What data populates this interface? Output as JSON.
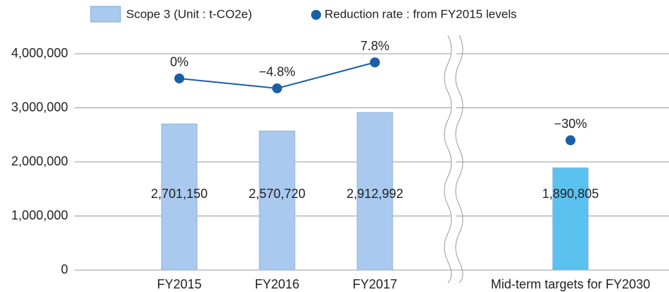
{
  "chart_data": {
    "type": "bar_line",
    "categories": [
      "FY2015",
      "FY2016",
      "FY2017",
      "Mid-term targets for FY2030"
    ],
    "series": [
      {
        "name": "Scope 3 (Unit : t-CO2e)",
        "type": "bar",
        "colors": [
          "#a9c9ee",
          "#a9c9ee",
          "#a9c9ee",
          "#5bc1ef"
        ],
        "values": [
          2701150,
          2570720,
          2912992,
          1890805
        ],
        "value_labels": [
          "2,701,150",
          "2,570,720",
          "2,912,992",
          "1,890,805"
        ]
      },
      {
        "name": "Reduction rate : from FY2015 levels",
        "type": "line",
        "axis": "y2",
        "color": "#1a5ea8",
        "values": [
          0,
          -4.8,
          7.8,
          -30
        ],
        "value_labels": [
          "0%",
          "−4.8%",
          "7.8%",
          "−30%"
        ]
      }
    ],
    "ylim": [
      0,
      4000000
    ],
    "yticks": [
      0,
      {
        "value": 1000000,
        "label": "1,000,000"
      },
      {
        "value": 2000000,
        "label": "2,000,000"
      },
      {
        "value": 3000000,
        "label": "3,000,000"
      },
      {
        "value": 4000000,
        "label": "4,000,000"
      }
    ],
    "y2lim": [
      -93,
      12
    ],
    "grid": true,
    "axis_break_after": 2
  }
}
